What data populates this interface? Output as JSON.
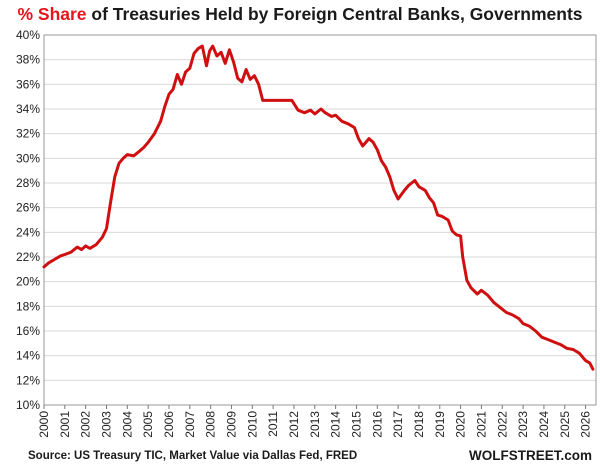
{
  "chart_data": {
    "type": "line",
    "title_accent": "% Share",
    "title_rest": " of Treasuries Held by Foreign Central Banks, Governments",
    "xlabel": "",
    "ylabel": "",
    "xlim": [
      2000,
      2026.5
    ],
    "ylim": [
      10,
      40
    ],
    "yticks": [
      "10%",
      "12%",
      "14%",
      "16%",
      "18%",
      "20%",
      "22%",
      "24%",
      "26%",
      "28%",
      "30%",
      "32%",
      "34%",
      "36%",
      "38%",
      "40%"
    ],
    "xticks": [
      "2000",
      "2001",
      "2002",
      "2003",
      "2004",
      "2005",
      "2006",
      "2007",
      "2008",
      "2009",
      "2010",
      "2011",
      "2012",
      "2013",
      "2014",
      "2015",
      "2016",
      "2017",
      "2018",
      "2019",
      "2020",
      "2021",
      "2022",
      "2023",
      "2024",
      "2025",
      "2026"
    ],
    "grid": true,
    "legend": "none",
    "series": [
      {
        "color": "#d01010",
        "x": [
          2000.0,
          2000.2,
          2000.5,
          2000.8,
          2001.0,
          2001.3,
          2001.6,
          2001.8,
          2002.0,
          2002.2,
          2002.5,
          2002.8,
          2003.0,
          2003.2,
          2003.4,
          2003.6,
          2003.8,
          2004.0,
          2004.3,
          2004.6,
          2004.8,
          2005.0,
          2005.3,
          2005.6,
          2005.8,
          2006.0,
          2006.2,
          2006.4,
          2006.6,
          2006.8,
          2007.0,
          2007.2,
          2007.4,
          2007.6,
          2007.8,
          2007.95,
          2008.1,
          2008.3,
          2008.5,
          2008.7,
          2008.9,
          2009.1,
          2009.3,
          2009.5,
          2009.7,
          2009.9,
          2010.1,
          2010.3,
          2010.5,
          2011.0,
          2011.5,
          2011.9,
          2012.2,
          2012.5,
          2012.8,
          2013.0,
          2013.3,
          2013.5,
          2013.8,
          2014.0,
          2014.3,
          2014.6,
          2014.9,
          2015.1,
          2015.3,
          2015.6,
          2015.8,
          2016.0,
          2016.2,
          2016.4,
          2016.6,
          2016.8,
          2017.0,
          2017.3,
          2017.5,
          2017.8,
          2018.0,
          2018.3,
          2018.5,
          2018.7,
          2018.9,
          2019.1,
          2019.4,
          2019.6,
          2019.8,
          2020.0,
          2020.1,
          2020.3,
          2020.5,
          2020.8,
          2021.0,
          2021.3,
          2021.6,
          2021.9,
          2022.2,
          2022.5,
          2022.8,
          2023.0,
          2023.3,
          2023.6,
          2023.9,
          2024.2,
          2024.5,
          2024.8,
          2025.1,
          2025.4,
          2025.7,
          2026.0,
          2026.2,
          2026.35
        ],
        "y": [
          21.2,
          21.5,
          21.8,
          22.1,
          22.2,
          22.4,
          22.8,
          22.6,
          22.9,
          22.7,
          23.0,
          23.6,
          24.3,
          26.5,
          28.5,
          29.6,
          30.0,
          30.3,
          30.2,
          30.6,
          30.9,
          31.3,
          32.0,
          33.0,
          34.2,
          35.2,
          35.6,
          36.8,
          36.0,
          37.0,
          37.3,
          38.5,
          38.9,
          39.1,
          37.5,
          38.7,
          39.1,
          38.3,
          38.6,
          37.7,
          38.8,
          37.8,
          36.5,
          36.2,
          37.2,
          36.4,
          36.7,
          36.0,
          34.7,
          34.7,
          34.7,
          34.7,
          33.9,
          33.7,
          33.9,
          33.6,
          34.0,
          33.7,
          33.4,
          33.5,
          33.0,
          32.8,
          32.5,
          31.6,
          31.0,
          31.6,
          31.3,
          30.7,
          29.8,
          29.3,
          28.5,
          27.4,
          26.7,
          27.4,
          27.8,
          28.2,
          27.7,
          27.4,
          26.8,
          26.4,
          25.4,
          25.3,
          25.0,
          24.1,
          23.8,
          23.7,
          22.0,
          20.1,
          19.5,
          19.0,
          19.3,
          18.9,
          18.3,
          17.9,
          17.5,
          17.3,
          17.0,
          16.6,
          16.4,
          16.0,
          15.5,
          15.3,
          15.1,
          14.9,
          14.6,
          14.5,
          14.2,
          13.6,
          13.4,
          12.9
        ]
      }
    ],
    "source": "Source: US Treasury  TIC, Market Value via Dallas Fed, FRED",
    "brand": "WOLFSTREET.com"
  }
}
